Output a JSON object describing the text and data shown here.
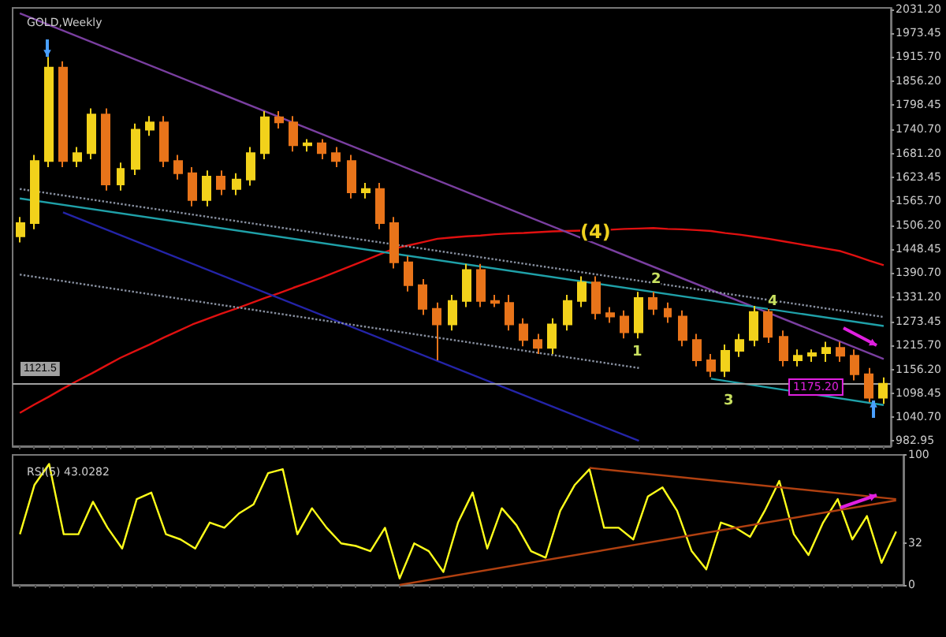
{
  "chart_data": [
    {
      "type": "candlestick",
      "title": "GOLD,Weekly",
      "tick_labels": "y",
      "marker": "none",
      "categories": [
        null,
        null,
        null,
        null,
        null,
        null,
        null,
        null,
        null,
        null,
        null,
        null,
        null,
        null,
        null,
        null,
        null,
        null,
        null,
        null,
        null,
        null,
        null,
        null,
        null,
        null,
        null,
        null,
        null,
        null,
        null,
        null,
        null,
        null,
        null,
        null,
        null,
        null,
        null,
        null,
        null,
        null,
        null,
        null,
        null,
        null,
        null,
        null,
        null,
        null,
        null,
        null,
        null,
        null,
        null,
        null,
        null,
        null,
        null,
        null,
        null
      ],
      "ohlc": [
        [
          1480,
          1527,
          1465,
          1512
        ],
        [
          1512,
          1678,
          1497,
          1663
        ],
        [
          1663,
          1916,
          1648,
          1890
        ],
        [
          1890,
          1905,
          1648,
          1663
        ],
        [
          1663,
          1697,
          1648,
          1682
        ],
        [
          1682,
          1791,
          1667,
          1776
        ],
        [
          1776,
          1791,
          1591,
          1606
        ],
        [
          1606,
          1659,
          1591,
          1644
        ],
        [
          1644,
          1754,
          1629,
          1739
        ],
        [
          1739,
          1772,
          1724,
          1757
        ],
        [
          1757,
          1772,
          1648,
          1663
        ],
        [
          1663,
          1678,
          1618,
          1633
        ],
        [
          1633,
          1648,
          1553,
          1568
        ],
        [
          1568,
          1640,
          1553,
          1625
        ],
        [
          1625,
          1640,
          1580,
          1595
        ],
        [
          1595,
          1633,
          1580,
          1618
        ],
        [
          1618,
          1697,
          1603,
          1682
        ],
        [
          1682,
          1784,
          1667,
          1769
        ],
        [
          1769,
          1784,
          1742,
          1757
        ],
        [
          1757,
          1772,
          1686,
          1701
        ],
        [
          1701,
          1716,
          1686,
          1706
        ],
        [
          1706,
          1716,
          1667,
          1682
        ],
        [
          1682,
          1697,
          1648,
          1663
        ],
        [
          1663,
          1678,
          1572,
          1587
        ],
        [
          1587,
          1610,
          1572,
          1595
        ],
        [
          1595,
          1610,
          1497,
          1512
        ],
        [
          1512,
          1527,
          1402,
          1417
        ],
        [
          1417,
          1432,
          1346,
          1361
        ],
        [
          1361,
          1376,
          1289,
          1304
        ],
        [
          1304,
          1319,
          1179,
          1266
        ],
        [
          1266,
          1338,
          1251,
          1323
        ],
        [
          1323,
          1413,
          1308,
          1398
        ],
        [
          1398,
          1413,
          1308,
          1323
        ],
        [
          1323,
          1338,
          1308,
          1318
        ],
        [
          1318,
          1338,
          1251,
          1266
        ],
        [
          1266,
          1281,
          1213,
          1228
        ],
        [
          1228,
          1243,
          1194,
          1209
        ],
        [
          1209,
          1281,
          1194,
          1266
        ],
        [
          1266,
          1338,
          1251,
          1323
        ],
        [
          1323,
          1383,
          1308,
          1368
        ],
        [
          1368,
          1383,
          1278,
          1293
        ],
        [
          1293,
          1308,
          1270,
          1285
        ],
        [
          1285,
          1300,
          1232,
          1247
        ],
        [
          1247,
          1345,
          1232,
          1330
        ],
        [
          1330,
          1345,
          1289,
          1304
        ],
        [
          1304,
          1319,
          1270,
          1285
        ],
        [
          1285,
          1300,
          1213,
          1228
        ],
        [
          1228,
          1243,
          1164,
          1179
        ],
        [
          1179,
          1194,
          1138,
          1153
        ],
        [
          1153,
          1217,
          1138,
          1202
        ],
        [
          1202,
          1243,
          1187,
          1228
        ],
        [
          1228,
          1311,
          1213,
          1296
        ],
        [
          1296,
          1311,
          1221,
          1236
        ],
        [
          1236,
          1251,
          1164,
          1179
        ],
        [
          1179,
          1205,
          1164,
          1190
        ],
        [
          1190,
          1205,
          1175,
          1196
        ],
        [
          1196,
          1224,
          1175,
          1209
        ],
        [
          1209,
          1224,
          1175,
          1190
        ],
        [
          1190,
          1205,
          1130,
          1145
        ],
        [
          1145,
          1160,
          1077,
          1088
        ],
        [
          1088,
          1137,
          1073,
          1122
        ]
      ],
      "series": [
        {
          "type": "line",
          "color": "#e01010",
          "values": [
            1051,
            1071,
            1090,
            1110,
            1129,
            1147,
            1166,
            1185,
            1201,
            1217,
            1234,
            1250,
            1266,
            1279,
            1292,
            1304,
            1317,
            1330,
            1342,
            1355,
            1367,
            1380,
            1394,
            1408,
            1422,
            1436,
            1450,
            1458,
            1466,
            1474,
            1477,
            1480,
            1482,
            1485,
            1487,
            1488,
            1490,
            1492,
            1493,
            1494,
            1495,
            1496,
            1498,
            1499,
            1500,
            1498,
            1497,
            1495,
            1493,
            1488,
            1484,
            1479,
            1474,
            1468,
            1462,
            1456,
            1450,
            1444,
            1433,
            1421,
            1410
          ]
        },
        {
          "type": "line",
          "color": "#7a3fa0",
          "values": [
            2022,
            null,
            null,
            null,
            null,
            null,
            null,
            null,
            null,
            null,
            null,
            null,
            null,
            null,
            null,
            null,
            null,
            null,
            null,
            null,
            null,
            null,
            null,
            null,
            null,
            null,
            null,
            null,
            null,
            null,
            null,
            null,
            null,
            null,
            null,
            null,
            null,
            null,
            null,
            null,
            null,
            null,
            null,
            null,
            null,
            null,
            null,
            null,
            null,
            null,
            null,
            null,
            null,
            null,
            null,
            null,
            null,
            null,
            null,
            null,
            1182
          ]
        },
        {
          "type": "line",
          "color": "#1fa0a8",
          "values": [
            1572,
            null,
            null,
            null,
            null,
            null,
            null,
            null,
            null,
            null,
            null,
            null,
            null,
            null,
            null,
            null,
            null,
            null,
            null,
            null,
            null,
            null,
            null,
            null,
            null,
            null,
            null,
            null,
            null,
            null,
            null,
            null,
            null,
            null,
            null,
            null,
            null,
            null,
            null,
            null,
            null,
            null,
            null,
            null,
            null,
            null,
            null,
            null,
            null,
            null,
            null,
            null,
            null,
            null,
            null,
            null,
            null,
            null,
            null,
            null,
            1262
          ]
        },
        {
          "type": "line",
          "color": "#1fa0a8",
          "values": [
            null,
            null,
            null,
            null,
            null,
            null,
            null,
            null,
            null,
            null,
            null,
            null,
            null,
            null,
            null,
            null,
            null,
            null,
            null,
            null,
            null,
            null,
            null,
            null,
            null,
            null,
            null,
            null,
            null,
            null,
            null,
            null,
            null,
            null,
            null,
            null,
            null,
            null,
            null,
            null,
            null,
            null,
            null,
            null,
            null,
            null,
            null,
            null,
            1134,
            null,
            null,
            null,
            null,
            null,
            null,
            null,
            null,
            null,
            null,
            null,
            1070
          ]
        },
        {
          "type": "line",
          "color": "#2424a8",
          "values": [
            null,
            null,
            null,
            1538,
            null,
            null,
            null,
            null,
            null,
            null,
            null,
            null,
            null,
            null,
            null,
            null,
            null,
            null,
            null,
            null,
            null,
            null,
            null,
            null,
            null,
            null,
            null,
            null,
            null,
            null,
            null,
            null,
            null,
            null,
            null,
            null,
            null,
            null,
            null,
            null,
            null,
            null,
            null,
            983,
            null,
            null,
            null,
            null,
            null,
            null,
            null,
            null,
            null,
            null,
            null,
            null,
            null,
            null,
            null,
            null,
            null
          ]
        },
        {
          "type": "line",
          "color": "#8890a0",
          "line_style": "dotted",
          "values": [
            1595,
            null,
            null,
            null,
            null,
            null,
            null,
            null,
            null,
            null,
            null,
            null,
            null,
            null,
            null,
            null,
            null,
            null,
            null,
            null,
            null,
            null,
            null,
            null,
            null,
            null,
            null,
            null,
            null,
            null,
            null,
            null,
            null,
            null,
            null,
            null,
            null,
            null,
            null,
            null,
            null,
            null,
            null,
            null,
            null,
            null,
            null,
            null,
            null,
            null,
            null,
            null,
            null,
            null,
            null,
            null,
            null,
            null,
            null,
            null,
            1284
          ]
        },
        {
          "type": "line",
          "color": "#8890a0",
          "line_style": "dotted",
          "values": [
            1387,
            null,
            null,
            null,
            null,
            null,
            null,
            null,
            null,
            null,
            null,
            null,
            null,
            null,
            null,
            null,
            null,
            null,
            null,
            null,
            null,
            null,
            null,
            null,
            null,
            null,
            null,
            null,
            null,
            null,
            null,
            null,
            null,
            null,
            null,
            null,
            null,
            null,
            null,
            null,
            null,
            null,
            null,
            1160,
            null,
            null,
            null,
            null,
            null,
            null,
            null,
            null,
            null,
            null,
            null,
            null,
            null,
            null,
            null,
            null,
            null
          ]
        }
      ],
      "ylim": [
        970,
        2035
      ],
      "yticks": [
        982.95,
        {
          "value": 1040.7,
          "label": "1040.70"
        },
        1098.45,
        {
          "value": 1156.2,
          "label": "1156.20"
        },
        {
          "value": 1215.7,
          "label": "1215.70"
        },
        1273.45,
        {
          "value": 1331.2,
          "label": "1331.20"
        },
        {
          "value": 1390.7,
          "label": "1390.70"
        },
        1448.45,
        {
          "value": 1506.2,
          "label": "1506.20"
        },
        {
          "value": 1565.7,
          "label": "1565.70"
        },
        1623.45,
        {
          "value": 1681.2,
          "label": "1681.20"
        },
        {
          "value": 1740.7,
          "label": "1740.70"
        },
        1798.45,
        {
          "value": 1856.2,
          "label": "1856.20"
        },
        {
          "value": 1915.7,
          "label": "1915.70"
        },
        1973.45,
        {
          "value": 2031.2,
          "label": "2031.20"
        }
      ],
      "ref_lines": [
        {
          "axis": "y",
          "value": 1121.5,
          "label": "1121.5",
          "color": "#a0a0a0"
        }
      ],
      "annotations": [
        "(4)",
        "2",
        "1",
        "3",
        "4",
        "1175.20"
      ]
    },
    {
      "type": "line",
      "title": "RSI(5) 43.0282",
      "tick_labels": "y",
      "marker": "none",
      "categories": [
        null,
        null,
        null,
        null,
        null,
        null,
        null,
        null,
        null,
        null,
        null,
        null,
        null,
        null,
        null,
        null,
        null,
        null,
        null,
        null,
        null,
        null,
        null,
        null,
        null,
        null,
        null,
        null,
        null,
        null,
        null,
        null,
        null,
        null,
        null,
        null,
        null,
        null,
        null,
        null,
        null,
        null,
        null,
        null,
        null,
        null,
        null,
        null,
        null,
        null,
        null,
        null,
        null,
        null,
        null,
        null,
        null,
        null,
        null,
        null,
        null
      ],
      "series": [
        {
          "color": "#ffff1a",
          "values": [
            39,
            77,
            93,
            39,
            39,
            64,
            44,
            28,
            66,
            71,
            39,
            35,
            28,
            48,
            44,
            55,
            62,
            86,
            89,
            39,
            59,
            44,
            32,
            30,
            26,
            44,
            5,
            32,
            26,
            10,
            48,
            71,
            28,
            59,
            46,
            26,
            21,
            57,
            77,
            89,
            44,
            44,
            35,
            68,
            75,
            57,
            26,
            12,
            48,
            44,
            37,
            57,
            80,
            39,
            23,
            48,
            66,
            35,
            53,
            17,
            41
          ]
        },
        {
          "color": "#b04010",
          "values": [
            null,
            null,
            null,
            null,
            null,
            null,
            null,
            null,
            null,
            null,
            null,
            null,
            null,
            null,
            null,
            null,
            null,
            null,
            null,
            null,
            null,
            null,
            null,
            null,
            null,
            null,
            null,
            null,
            null,
            null,
            null,
            null,
            null,
            null,
            null,
            null,
            null,
            null,
            null,
            90,
            null,
            null,
            null,
            null,
            null,
            null,
            null,
            null,
            null,
            null,
            null,
            null,
            null,
            null,
            null,
            null,
            null,
            null,
            null,
            null,
            66
          ]
        },
        {
          "color": "#b04010",
          "values": [
            null,
            null,
            null,
            null,
            null,
            null,
            null,
            null,
            null,
            null,
            null,
            null,
            null,
            null,
            null,
            null,
            null,
            null,
            null,
            null,
            null,
            null,
            null,
            null,
            null,
            null,
            0,
            null,
            null,
            null,
            null,
            null,
            null,
            null,
            null,
            null,
            null,
            null,
            null,
            null,
            null,
            null,
            null,
            null,
            null,
            null,
            null,
            null,
            null,
            null,
            null,
            null,
            null,
            null,
            null,
            null,
            null,
            null,
            null,
            null,
            65
          ]
        }
      ],
      "ylim": [
        0,
        100
      ],
      "yticks": [
        0,
        32,
        100
      ]
    }
  ]
}
